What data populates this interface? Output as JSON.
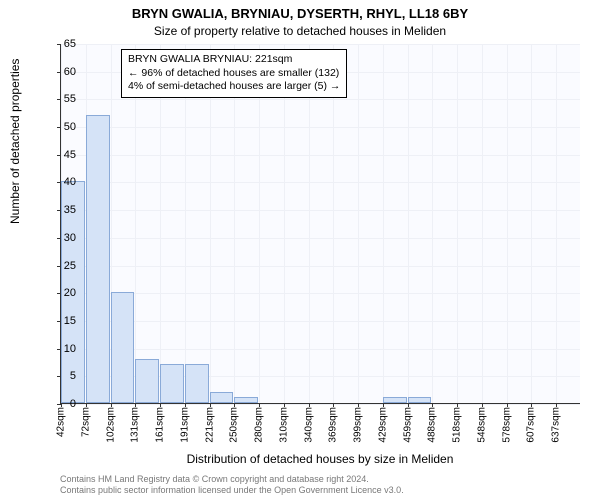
{
  "chart": {
    "type": "histogram",
    "title_main": "BRYN GWALIA, BRYNIAU, DYSERTH, RHYL, LL18 6BY",
    "title_sub": "Size of property relative to detached houses in Meliden",
    "title_fontsize_main": 13,
    "title_fontsize_sub": 12,
    "y_label": "Number of detached properties",
    "x_label": "Distribution of detached houses by size in Meliden",
    "label_fontsize": 12,
    "background_color": "#fafbff",
    "grid_color": "#eef0f6",
    "axis_color": "#333333",
    "bar_fill": "#d5e3f7",
    "bar_border": "#8aaad8",
    "ylim": [
      0,
      65
    ],
    "ytick_step": 5,
    "yticks": [
      0,
      5,
      10,
      15,
      20,
      25,
      30,
      35,
      40,
      45,
      50,
      55,
      60,
      65
    ],
    "x_categories": [
      "42sqm",
      "72sqm",
      "102sqm",
      "131sqm",
      "161sqm",
      "191sqm",
      "221sqm",
      "250sqm",
      "280sqm",
      "310sqm",
      "340sqm",
      "369sqm",
      "399sqm",
      "429sqm",
      "459sqm",
      "488sqm",
      "518sqm",
      "548sqm",
      "578sqm",
      "607sqm",
      "637sqm"
    ],
    "values": [
      40,
      52,
      20,
      8,
      7,
      7,
      2,
      1,
      0,
      0,
      0,
      0,
      0,
      1,
      1,
      0,
      0,
      0,
      0,
      0
    ],
    "tick_fontsize": 11,
    "xtick_fontsize": 10
  },
  "annotation": {
    "line1": "BRYN GWALIA BRYNIAU: 221sqm",
    "line2": "← 96% of detached houses are smaller (132)",
    "line3": "4% of semi-detached houses are larger (5) →",
    "fontsize": 10.5,
    "border_color": "#000000",
    "bg_color": "#ffffff"
  },
  "footer": {
    "line1": "Contains HM Land Registry data © Crown copyright and database right 2024.",
    "line2": "Contains public sector information licensed under the Open Government Licence v3.0.",
    "color": "#787878",
    "fontsize": 9
  }
}
